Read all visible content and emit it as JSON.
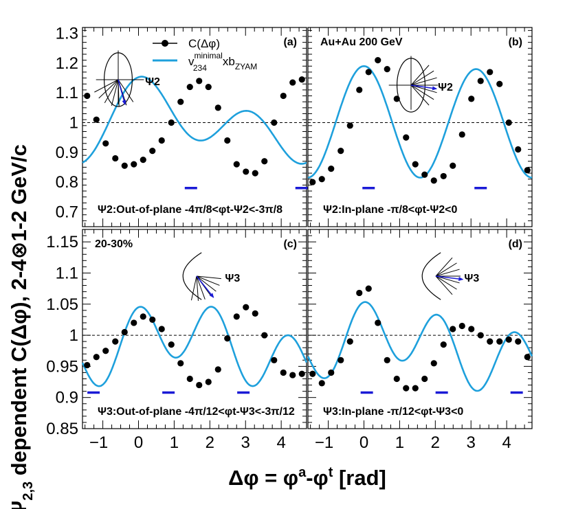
{
  "figure": {
    "y_axis_title": "Ψ2,3 dependent C(Δφ), 2-4⊗1-2 GeV/c",
    "x_axis_title": "Δφ = φa-φt [rad]",
    "legend": {
      "points_label": "C(Δφ)",
      "curve_label": "v234minimalxbZYAM"
    },
    "colors": {
      "curve": "#1ea0dc",
      "points": "#000000",
      "bars": "#1a1ad6",
      "reference_line": "#000000"
    }
  },
  "chart_data": [
    {
      "type": "scatter",
      "panel": "a",
      "tag": "(a)",
      "plane": "Ψ2",
      "condition": "Ψ2:Out-of-plane -4π/8<φt-Ψ2<-3π/8",
      "xlim": [
        -1.57,
        4.71
      ],
      "ylim": [
        0.65,
        1.32
      ],
      "xticks": [
        -1,
        0,
        1,
        2,
        3,
        4
      ],
      "yticks": [
        0.7,
        0.8,
        0.9,
        1,
        1.1,
        1.2,
        1.3
      ],
      "reference_y": 1.0,
      "points": {
        "x": [
          -1.44,
          -1.18,
          -0.92,
          -0.65,
          -0.39,
          -0.13,
          0.13,
          0.39,
          0.65,
          0.92,
          1.18,
          1.44,
          1.7,
          1.96,
          2.23,
          2.49,
          2.75,
          3.01,
          3.27,
          3.53,
          3.8,
          4.06,
          4.32,
          4.58
        ],
        "y": [
          1.09,
          1.01,
          0.93,
          0.88,
          0.855,
          0.86,
          0.875,
          0.905,
          0.94,
          1.0,
          1.07,
          1.12,
          1.14,
          1.12,
          1.05,
          0.94,
          0.86,
          0.835,
          0.83,
          0.87,
          1.0,
          1.09,
          1.135,
          1.145
        ]
      },
      "curve": {
        "C": 1.0,
        "a": 0.07,
        "phi": 0.6,
        "b": 0.095,
        "c3": 0.0
      },
      "bars": {
        "y": 0.78,
        "x": [
          1.47,
          4.57
        ]
      }
    },
    {
      "type": "scatter",
      "panel": "b",
      "tag": "(b)",
      "header": "Au+Au 200 GeV",
      "plane": "Ψ2",
      "condition": "Ψ2:In-plane -π/8<φt-Ψ2<0",
      "xlim": [
        -1.57,
        4.71
      ],
      "ylim": [
        0.65,
        1.32
      ],
      "xticks": [
        -1,
        0,
        1,
        2,
        3,
        4
      ],
      "yticks": [
        0.7,
        0.8,
        0.9,
        1,
        1.1,
        1.2,
        1.3
      ],
      "reference_y": 1.0,
      "points": {
        "x": [
          -1.44,
          -1.18,
          -0.92,
          -0.65,
          -0.39,
          -0.13,
          0.13,
          0.39,
          0.65,
          0.92,
          1.18,
          1.44,
          1.7,
          1.96,
          2.23,
          2.49,
          2.75,
          3.01,
          3.27,
          3.53,
          3.8,
          4.06,
          4.32,
          4.58
        ],
        "y": [
          0.8,
          0.81,
          0.845,
          0.905,
          0.99,
          1.11,
          1.17,
          1.21,
          1.18,
          1.08,
          0.95,
          0.86,
          0.825,
          0.805,
          0.82,
          0.855,
          0.96,
          1.08,
          1.14,
          1.17,
          1.13,
          1.0,
          0.91,
          0.84
        ]
      },
      "curve": {
        "C": 1.0,
        "a": 0.005,
        "phi": 0.0,
        "b": 0.185,
        "c3": 0.0
      },
      "bars": {
        "y": 0.78,
        "x": [
          0.13,
          3.27
        ]
      }
    },
    {
      "type": "scatter",
      "panel": "c",
      "tag": "(c)",
      "header": "20-30%",
      "plane": "Ψ3",
      "condition": "Ψ3:Out-of-plane -4π/12<φt-Ψ3<-3π/12",
      "xlim": [
        -1.57,
        4.71
      ],
      "ylim": [
        0.85,
        1.17
      ],
      "xticks": [
        -1,
        0,
        1,
        2,
        3,
        4
      ],
      "yticks": [
        0.85,
        0.9,
        0.95,
        1,
        1.05,
        1.1,
        1.15
      ],
      "reference_y": 1.0,
      "points": {
        "x": [
          -1.44,
          -1.18,
          -0.92,
          -0.65,
          -0.39,
          -0.13,
          0.13,
          0.39,
          0.65,
          0.92,
          1.18,
          1.44,
          1.7,
          1.96,
          2.23,
          2.49,
          2.75,
          3.01,
          3.27,
          3.53,
          3.8,
          4.06,
          4.32,
          4.58
        ],
        "y": [
          0.952,
          0.965,
          0.975,
          0.99,
          1.005,
          1.02,
          1.03,
          1.025,
          1.01,
          0.985,
          0.955,
          0.93,
          0.92,
          0.925,
          0.945,
          0.995,
          1.03,
          1.045,
          1.035,
          1.0,
          0.96,
          0.94,
          0.936,
          0.938
        ]
      },
      "curve": {
        "C": 0.982,
        "a": 0.03,
        "phi": 1.05,
        "b": 0.0,
        "c3": 0.048
      },
      "bars": {
        "y": 0.908,
        "x": [
          -1.26,
          0.84,
          2.94
        ]
      }
    },
    {
      "type": "scatter",
      "panel": "d",
      "tag": "(d)",
      "plane": "Ψ3",
      "condition": "Ψ3:In-plane -π/12<φt-Ψ3<0",
      "xlim": [
        -1.57,
        4.71
      ],
      "ylim": [
        0.85,
        1.17
      ],
      "xticks": [
        -1,
        0,
        1,
        2,
        3,
        4
      ],
      "yticks": [
        0.85,
        0.9,
        0.95,
        1,
        1.05,
        1.1,
        1.15
      ],
      "reference_y": 1.0,
      "points": {
        "x": [
          -1.44,
          -1.18,
          -0.92,
          -0.65,
          -0.39,
          -0.13,
          0.13,
          0.39,
          0.65,
          0.92,
          1.18,
          1.44,
          1.7,
          1.96,
          2.23,
          2.49,
          2.75,
          3.01,
          3.27,
          3.53,
          3.8,
          4.06,
          4.32,
          4.58
        ],
        "y": [
          0.938,
          0.923,
          0.94,
          0.96,
          0.99,
          1.068,
          1.075,
          1.02,
          0.96,
          0.93,
          0.915,
          0.915,
          0.93,
          0.955,
          0.985,
          1.01,
          1.015,
          1.01,
          1.0,
          0.99,
          0.99,
          0.993,
          0.99,
          0.965
        ]
      },
      "curve": {
        "C": 0.982,
        "a": 0.028,
        "phi": 0.6,
        "b": 0.0,
        "c3": 0.048
      },
      "bars": {
        "y": 0.908,
        "x": [
          0.08,
          2.18,
          4.28
        ]
      }
    }
  ]
}
